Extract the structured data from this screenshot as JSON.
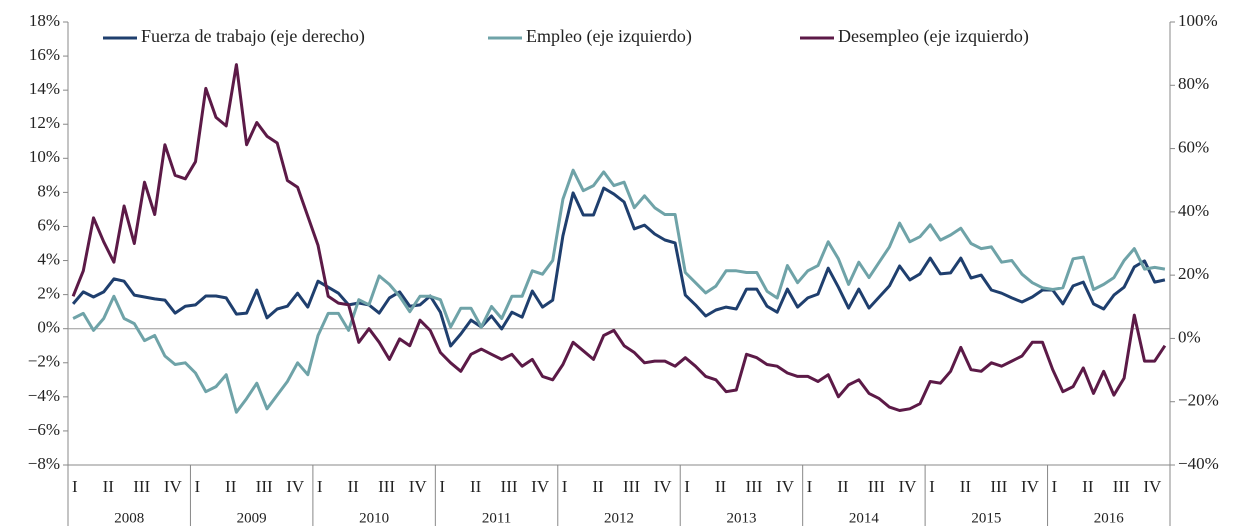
{
  "chart_data": {
    "type": "line",
    "categories": [
      "I",
      null,
      null,
      "II",
      null,
      null,
      "III",
      null,
      null,
      "IV",
      null,
      null,
      "I",
      null,
      null,
      "II",
      null,
      null,
      "III",
      null,
      null,
      "IV",
      null,
      null,
      "I",
      null,
      null,
      "II",
      null,
      null,
      "III",
      null,
      null,
      "IV",
      null,
      null,
      "I",
      null,
      null,
      "II",
      null,
      null,
      "III",
      null,
      null,
      "IV",
      null,
      null,
      "I",
      null,
      null,
      "II",
      null,
      null,
      "III",
      null,
      null,
      "IV",
      null,
      null,
      "I",
      null,
      null,
      "II",
      null,
      null,
      "III",
      null,
      null,
      "IV",
      null,
      null,
      "I",
      null,
      null,
      "II",
      null,
      null,
      "III",
      null,
      null,
      "IV",
      null,
      null,
      "I",
      null,
      null,
      "II",
      null,
      null,
      "III",
      null,
      null,
      "IV",
      null,
      null,
      "I",
      null,
      null,
      "II",
      null,
      null,
      "III",
      null,
      null,
      "IV",
      null,
      null
    ],
    "years": [
      "2008",
      "2009",
      "2010",
      "2011",
      "2012",
      "2013",
      "2014",
      "2015",
      "2016"
    ],
    "ylim": [
      -8,
      18
    ],
    "yticks": [
      {
        "value": -8,
        "label": "−8%"
      },
      {
        "value": -6,
        "label": "−6%"
      },
      {
        "value": -4,
        "label": "−4%"
      },
      {
        "value": -2,
        "label": "−2%"
      },
      {
        "value": 0,
        "label": "0%"
      },
      {
        "value": 2,
        "label": "2%"
      },
      {
        "value": 4,
        "label": "4%"
      },
      {
        "value": 6,
        "label": "6%"
      },
      {
        "value": 8,
        "label": "8%"
      },
      {
        "value": 10,
        "label": "10%"
      },
      {
        "value": 12,
        "label": "12%"
      },
      {
        "value": 14,
        "label": "14%"
      },
      {
        "value": 16,
        "label": "16%"
      },
      {
        "value": 18,
        "label": "18%"
      }
    ],
    "y2lim": [
      -40,
      100
    ],
    "y2ticks": [
      {
        "value": -40,
        "label": "−40%"
      },
      {
        "value": -20,
        "label": "−20%"
      },
      {
        "value": 0,
        "label": "0%"
      },
      {
        "value": 20,
        "label": "20%"
      },
      {
        "value": 40,
        "label": "40%"
      },
      {
        "value": 60,
        "label": "60%"
      },
      {
        "value": 80,
        "label": "80%"
      },
      {
        "value": 100,
        "label": "100%"
      }
    ],
    "legend": "top",
    "series": [
      {
        "name": "Fuerza de trabajo (eje derecho)",
        "color": "#1f3f6e",
        "axis": "y2",
        "values": [
          10.9,
          14.7,
          13.1,
          14.7,
          18.8,
          18.1,
          13.7,
          13.1,
          12.5,
          12.1,
          8.0,
          10.2,
          10.6,
          13.4,
          13.4,
          12.8,
          7.7,
          8.0,
          15.3,
          6.5,
          9.3,
          10.2,
          14.3,
          9.9,
          18.1,
          16.2,
          14.3,
          10.6,
          11.2,
          10.6,
          8.0,
          12.8,
          14.7,
          10.2,
          10.6,
          13.4,
          8.3,
          -2.4,
          1.4,
          5.8,
          3.6,
          7.1,
          3.0,
          8.3,
          6.7,
          15.0,
          9.9,
          12.1,
          32.4,
          46.0,
          39.0,
          39.0,
          47.5,
          45.6,
          43.1,
          34.6,
          35.8,
          33.0,
          31.1,
          30.2,
          13.7,
          10.6,
          7.1,
          9.0,
          9.9,
          9.3,
          15.6,
          15.6,
          10.2,
          8.3,
          15.6,
          9.9,
          12.8,
          14.0,
          22.2,
          16.2,
          9.6,
          15.6,
          9.6,
          13.1,
          16.6,
          22.9,
          18.5,
          20.4,
          25.4,
          20.4,
          20.7,
          25.4,
          19.1,
          20.0,
          15.3,
          14.3,
          12.8,
          11.5,
          13.1,
          15.3,
          15.3,
          10.9,
          16.6,
          17.8,
          10.9,
          9.3,
          13.7,
          16.2,
          22.6,
          24.5,
          17.8,
          18.5
        ]
      },
      {
        "name": "Empleo (eje izquierdo)",
        "color": "#6fa3a8",
        "values": [
          0.6,
          0.9,
          -0.1,
          0.6,
          1.9,
          0.6,
          0.3,
          -0.7,
          -0.4,
          -1.6,
          -2.1,
          -2.0,
          -2.6,
          -3.7,
          -3.4,
          -2.7,
          -4.9,
          -4.1,
          -3.2,
          -4.7,
          -3.9,
          -3.1,
          -2.0,
          -2.7,
          -0.4,
          0.9,
          0.9,
          -0.1,
          1.7,
          1.4,
          3.1,
          2.6,
          1.9,
          1.0,
          1.9,
          1.9,
          1.7,
          0.1,
          1.2,
          1.2,
          0.1,
          1.3,
          0.6,
          1.9,
          1.9,
          3.4,
          3.2,
          4.0,
          7.6,
          9.3,
          8.1,
          8.4,
          9.2,
          8.4,
          8.6,
          7.1,
          7.8,
          7.1,
          6.7,
          6.7,
          3.3,
          2.7,
          2.1,
          2.5,
          3.4,
          3.4,
          3.3,
          3.3,
          2.2,
          1.8,
          3.7,
          2.7,
          3.4,
          3.7,
          5.1,
          4.1,
          2.6,
          3.9,
          3.0,
          3.9,
          4.8,
          6.2,
          5.1,
          5.4,
          6.1,
          5.2,
          5.5,
          5.9,
          5.0,
          4.7,
          4.8,
          3.9,
          4.0,
          3.2,
          2.7,
          2.4,
          2.3,
          2.4,
          4.1,
          4.2,
          2.3,
          2.6,
          3.0,
          4.0,
          4.7,
          3.5,
          3.6,
          3.5
        ]
      },
      {
        "name": "Desempleo (eje izquierdo)",
        "color": "#5c1a47",
        "values": [
          1.9,
          3.4,
          6.5,
          5.1,
          3.9,
          7.2,
          5.0,
          8.6,
          6.7,
          10.8,
          9.0,
          8.8,
          9.8,
          14.1,
          12.4,
          11.9,
          15.5,
          10.8,
          12.1,
          11.3,
          10.9,
          8.7,
          8.3,
          6.6,
          4.9,
          1.9,
          1.5,
          1.4,
          -0.8,
          0.0,
          -0.8,
          -1.8,
          -0.6,
          -1.0,
          0.5,
          -0.1,
          -1.4,
          -2.0,
          -2.5,
          -1.5,
          -1.2,
          -1.5,
          -1.8,
          -1.5,
          -2.2,
          -1.8,
          -2.8,
          -3.0,
          -2.1,
          -0.8,
          -1.3,
          -1.8,
          -0.4,
          -0.1,
          -1.0,
          -1.4,
          -2.0,
          -1.9,
          -1.9,
          -2.2,
          -1.7,
          -2.2,
          -2.8,
          -3.0,
          -3.7,
          -3.6,
          -1.5,
          -1.7,
          -2.1,
          -2.2,
          -2.6,
          -2.8,
          -2.8,
          -3.1,
          -2.7,
          -4.0,
          -3.3,
          -3.0,
          -3.8,
          -4.1,
          -4.6,
          -4.8,
          -4.7,
          -4.4,
          -3.1,
          -3.2,
          -2.5,
          -1.1,
          -2.4,
          -2.5,
          -2.0,
          -2.2,
          -1.9,
          -1.6,
          -0.8,
          -0.8,
          -2.4,
          -3.7,
          -3.4,
          -2.3,
          -3.8,
          -2.5,
          -3.9,
          -2.9,
          0.8,
          -1.9,
          -1.9,
          -1.0
        ]
      }
    ]
  }
}
